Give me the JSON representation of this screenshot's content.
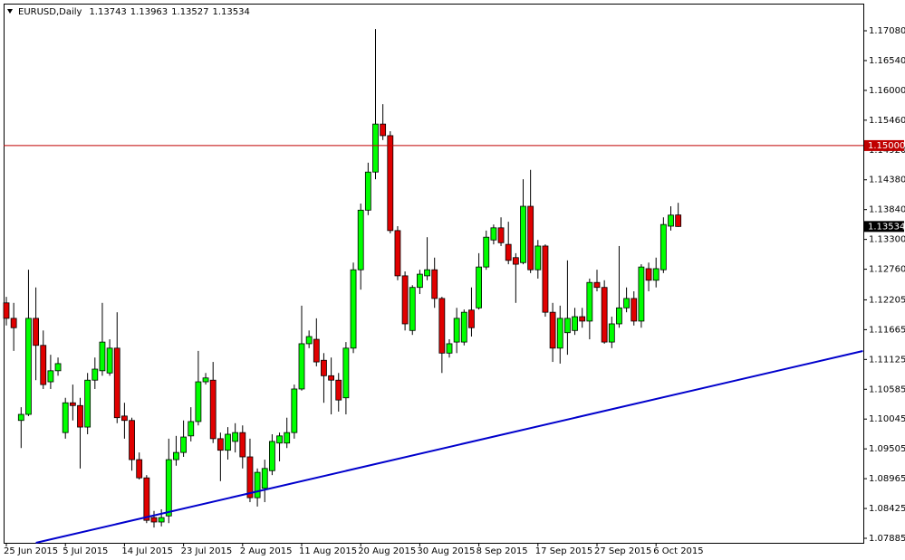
{
  "chart_data": {
    "type": "candlestick",
    "title": "EURUSD,Daily",
    "categories": [
      "25 Jun 2015",
      null,
      null,
      null,
      null,
      null,
      null,
      null,
      "5 Jul 2015",
      null,
      null,
      null,
      null,
      null,
      null,
      null,
      "14 Jul 2015",
      null,
      null,
      null,
      null,
      null,
      null,
      null,
      "23 Jul 2015",
      null,
      null,
      null,
      null,
      null,
      null,
      null,
      "2 Aug 2015",
      null,
      null,
      null,
      null,
      null,
      null,
      null,
      "11 Aug 2015",
      null,
      null,
      null,
      null,
      null,
      null,
      null,
      "20 Aug 2015",
      null,
      null,
      null,
      null,
      null,
      null,
      null,
      "30 Aug 2015",
      null,
      null,
      null,
      null,
      null,
      null,
      null,
      "8 Sep 2015",
      null,
      null,
      null,
      null,
      null,
      null,
      null,
      "17 Sep 2015",
      null,
      null,
      null,
      null,
      null,
      null,
      null,
      "27 Sep 2015",
      null,
      null,
      null,
      null,
      null,
      null,
      null,
      "6 Oct 2015",
      null,
      null,
      null
    ],
    "open": [
      1.1215,
      1.1187,
      1.1002,
      1.1013,
      1.1187,
      1.1138,
      1.1072,
      1.1092,
      1.098,
      1.1034,
      1.1029,
      1.099,
      1.1075,
      1.1092,
      1.1088,
      1.1133,
      1.101,
      1.1002,
      1.0931,
      1.0898,
      1.0826,
      1.0818,
      1.0829,
      1.0931,
      1.0944,
      1.0974,
      1.1,
      1.1072,
      1.1075,
      1.0969,
      1.0948,
      1.0964,
      1.098,
      1.0936,
      1.0862,
      1.0879,
      1.0911,
      1.0961,
      1.0961,
      1.098,
      1.1059,
      1.1141,
      1.1149,
      1.1111,
      1.1083,
      1.1075,
      1.1043,
      1.1133,
      1.1275,
      1.1383,
      1.1452,
      1.1539,
      1.1518,
      1.1346,
      1.1264,
      1.1165,
      1.1243,
      1.1264,
      1.1275,
      1.1223,
      1.1124,
      1.1144,
      1.1144,
      1.1202,
      1.1206,
      1.128,
      1.1329,
      1.1351,
      1.1321,
      1.1297,
      1.1288,
      1.139,
      1.1275,
      1.1318,
      1.1198,
      1.1133,
      1.1161,
      1.1165,
      1.119,
      1.1182,
      1.1252,
      1.1243,
      1.1144,
      1.1177,
      1.1206,
      1.1223,
      1.1182,
      1.1277,
      1.1256,
      1.1275,
      1.1354,
      1.13743
    ],
    "high": [
      1.1226,
      1.1215,
      1.1026,
      1.1275,
      1.1243,
      1.1165,
      1.1121,
      1.1116,
      1.1043,
      1.1067,
      1.1043,
      1.1088,
      1.1116,
      1.1215,
      1.1149,
      1.1198,
      1.1034,
      1.1007,
      1.0944,
      1.0903,
      1.0838,
      1.0841,
      1.0969,
      1.0974,
      1.1002,
      1.1026,
      1.1128,
      1.1088,
      1.1108,
      1.098,
      1.099,
      1.0997,
      1.0993,
      1.0969,
      1.0915,
      1.0931,
      1.0977,
      1.098,
      1.1007,
      1.1067,
      1.121,
      1.1165,
      1.1187,
      1.1124,
      1.1116,
      1.1088,
      1.1144,
      1.1288,
      1.1395,
      1.1469,
      1.1711,
      1.1575,
      1.1526,
      1.1354,
      1.1272,
      1.1247,
      1.1275,
      1.1334,
      1.1297,
      1.1226,
      1.1149,
      1.1206,
      1.1203,
      1.1243,
      1.1305,
      1.1346,
      1.1357,
      1.137,
      1.1362,
      1.1305,
      1.1439,
      1.1456,
      1.1329,
      1.1321,
      1.1215,
      1.121,
      1.1292,
      1.1206,
      1.1206,
      1.1259,
      1.1275,
      1.1256,
      1.119,
      1.1318,
      1.1243,
      1.1236,
      1.1285,
      1.1288,
      1.1297,
      1.137,
      1.139,
      1.13963
    ],
    "low": [
      1.1174,
      1.1128,
      1.0952,
      1.101,
      1.1075,
      1.1059,
      1.1059,
      1.1083,
      1.0969,
      1.1002,
      1.0915,
      1.0977,
      1.1059,
      1.1083,
      1.1083,
      1.0997,
      1.0969,
      1.0911,
      1.0895,
      1.0816,
      1.0808,
      1.081,
      1.0816,
      1.092,
      1.0936,
      1.0964,
      1.0993,
      1.1067,
      1.0961,
      1.0892,
      1.0931,
      1.0944,
      1.0915,
      1.0854,
      1.0846,
      1.0854,
      1.0903,
      1.0928,
      1.0952,
      1.0969,
      1.1056,
      1.1133,
      1.11,
      1.1034,
      1.1013,
      1.1018,
      1.1013,
      1.1124,
      1.1239,
      1.1374,
      1.1439,
      1.151,
      1.1341,
      1.1256,
      1.1165,
      1.1157,
      1.1231,
      1.1256,
      1.1206,
      1.1088,
      1.1116,
      1.1124,
      1.1138,
      1.1154,
      1.1203,
      1.1275,
      1.1321,
      1.1318,
      1.1285,
      1.1215,
      1.1285,
      1.1269,
      1.1259,
      1.119,
      1.1108,
      1.1105,
      1.1121,
      1.1157,
      1.117,
      1.1149,
      1.1236,
      1.1141,
      1.1133,
      1.117,
      1.1198,
      1.1174,
      1.117,
      1.1236,
      1.1243,
      1.1269,
      1.1346,
      1.13527
    ],
    "close": [
      1.1187,
      1.117,
      1.1013,
      1.1187,
      1.1138,
      1.1067,
      1.1092,
      1.1105,
      1.1034,
      1.1029,
      1.099,
      1.1075,
      1.1095,
      1.1144,
      1.1133,
      1.1007,
      1.1002,
      1.0931,
      1.0898,
      1.0821,
      1.0818,
      1.0826,
      1.0931,
      1.0944,
      1.0972,
      1.1,
      1.1072,
      1.1079,
      1.0969,
      1.0948,
      1.0977,
      1.098,
      1.0936,
      1.0862,
      1.0908,
      1.0915,
      1.0964,
      1.0974,
      1.098,
      1.1059,
      1.1141,
      1.1154,
      1.1108,
      1.1083,
      1.1075,
      1.1039,
      1.1133,
      1.1275,
      1.1383,
      1.1452,
      1.1539,
      1.1518,
      1.1346,
      1.1264,
      1.1177,
      1.1243,
      1.1267,
      1.1275,
      1.1223,
      1.1124,
      1.1141,
      1.1187,
      1.1198,
      1.117,
      1.128,
      1.1334,
      1.1351,
      1.1324,
      1.1292,
      1.1285,
      1.139,
      1.1275,
      1.1318,
      1.1198,
      1.1133,
      1.1187,
      1.1187,
      1.119,
      1.1182,
      1.1252,
      1.1243,
      1.1144,
      1.1177,
      1.1206,
      1.1223,
      1.1182,
      1.128,
      1.1256,
      1.1277,
      1.1357,
      1.1374,
      1.13534
    ],
    "up_color": "#00ff00",
    "down_color": "#e00000",
    "outline_color": "#000000",
    "ylim": [
      1.07803,
      1.17572
    ],
    "yticks": [
      {
        "value": 1.1708,
        "label": "1.17080"
      },
      {
        "value": 1.1654,
        "label": "1.16540"
      },
      {
        "value": 1.16,
        "label": "1.16000"
      },
      {
        "value": 1.1546,
        "label": "1.15460"
      },
      {
        "value": 1.1492,
        "label": "1.14920"
      },
      {
        "value": 1.1438,
        "label": "1.14380"
      },
      {
        "value": 1.1384,
        "label": "1.13840"
      },
      {
        "value": 1.133,
        "label": "1.13300"
      },
      {
        "value": 1.1276,
        "label": "1.12760"
      },
      1.12205,
      1.11665,
      1.11125,
      1.10585,
      1.10045,
      1.09505,
      1.08965,
      1.08425,
      1.07885
    ],
    "hline": {
      "value": 1.15,
      "label": "1.15000",
      "color": "#c00000"
    },
    "trendline": {
      "color": "#0000cc",
      "start": [
        4,
        1.07803
      ],
      "end": [
        116,
        1.11278
      ]
    },
    "grid": false
  }
}
